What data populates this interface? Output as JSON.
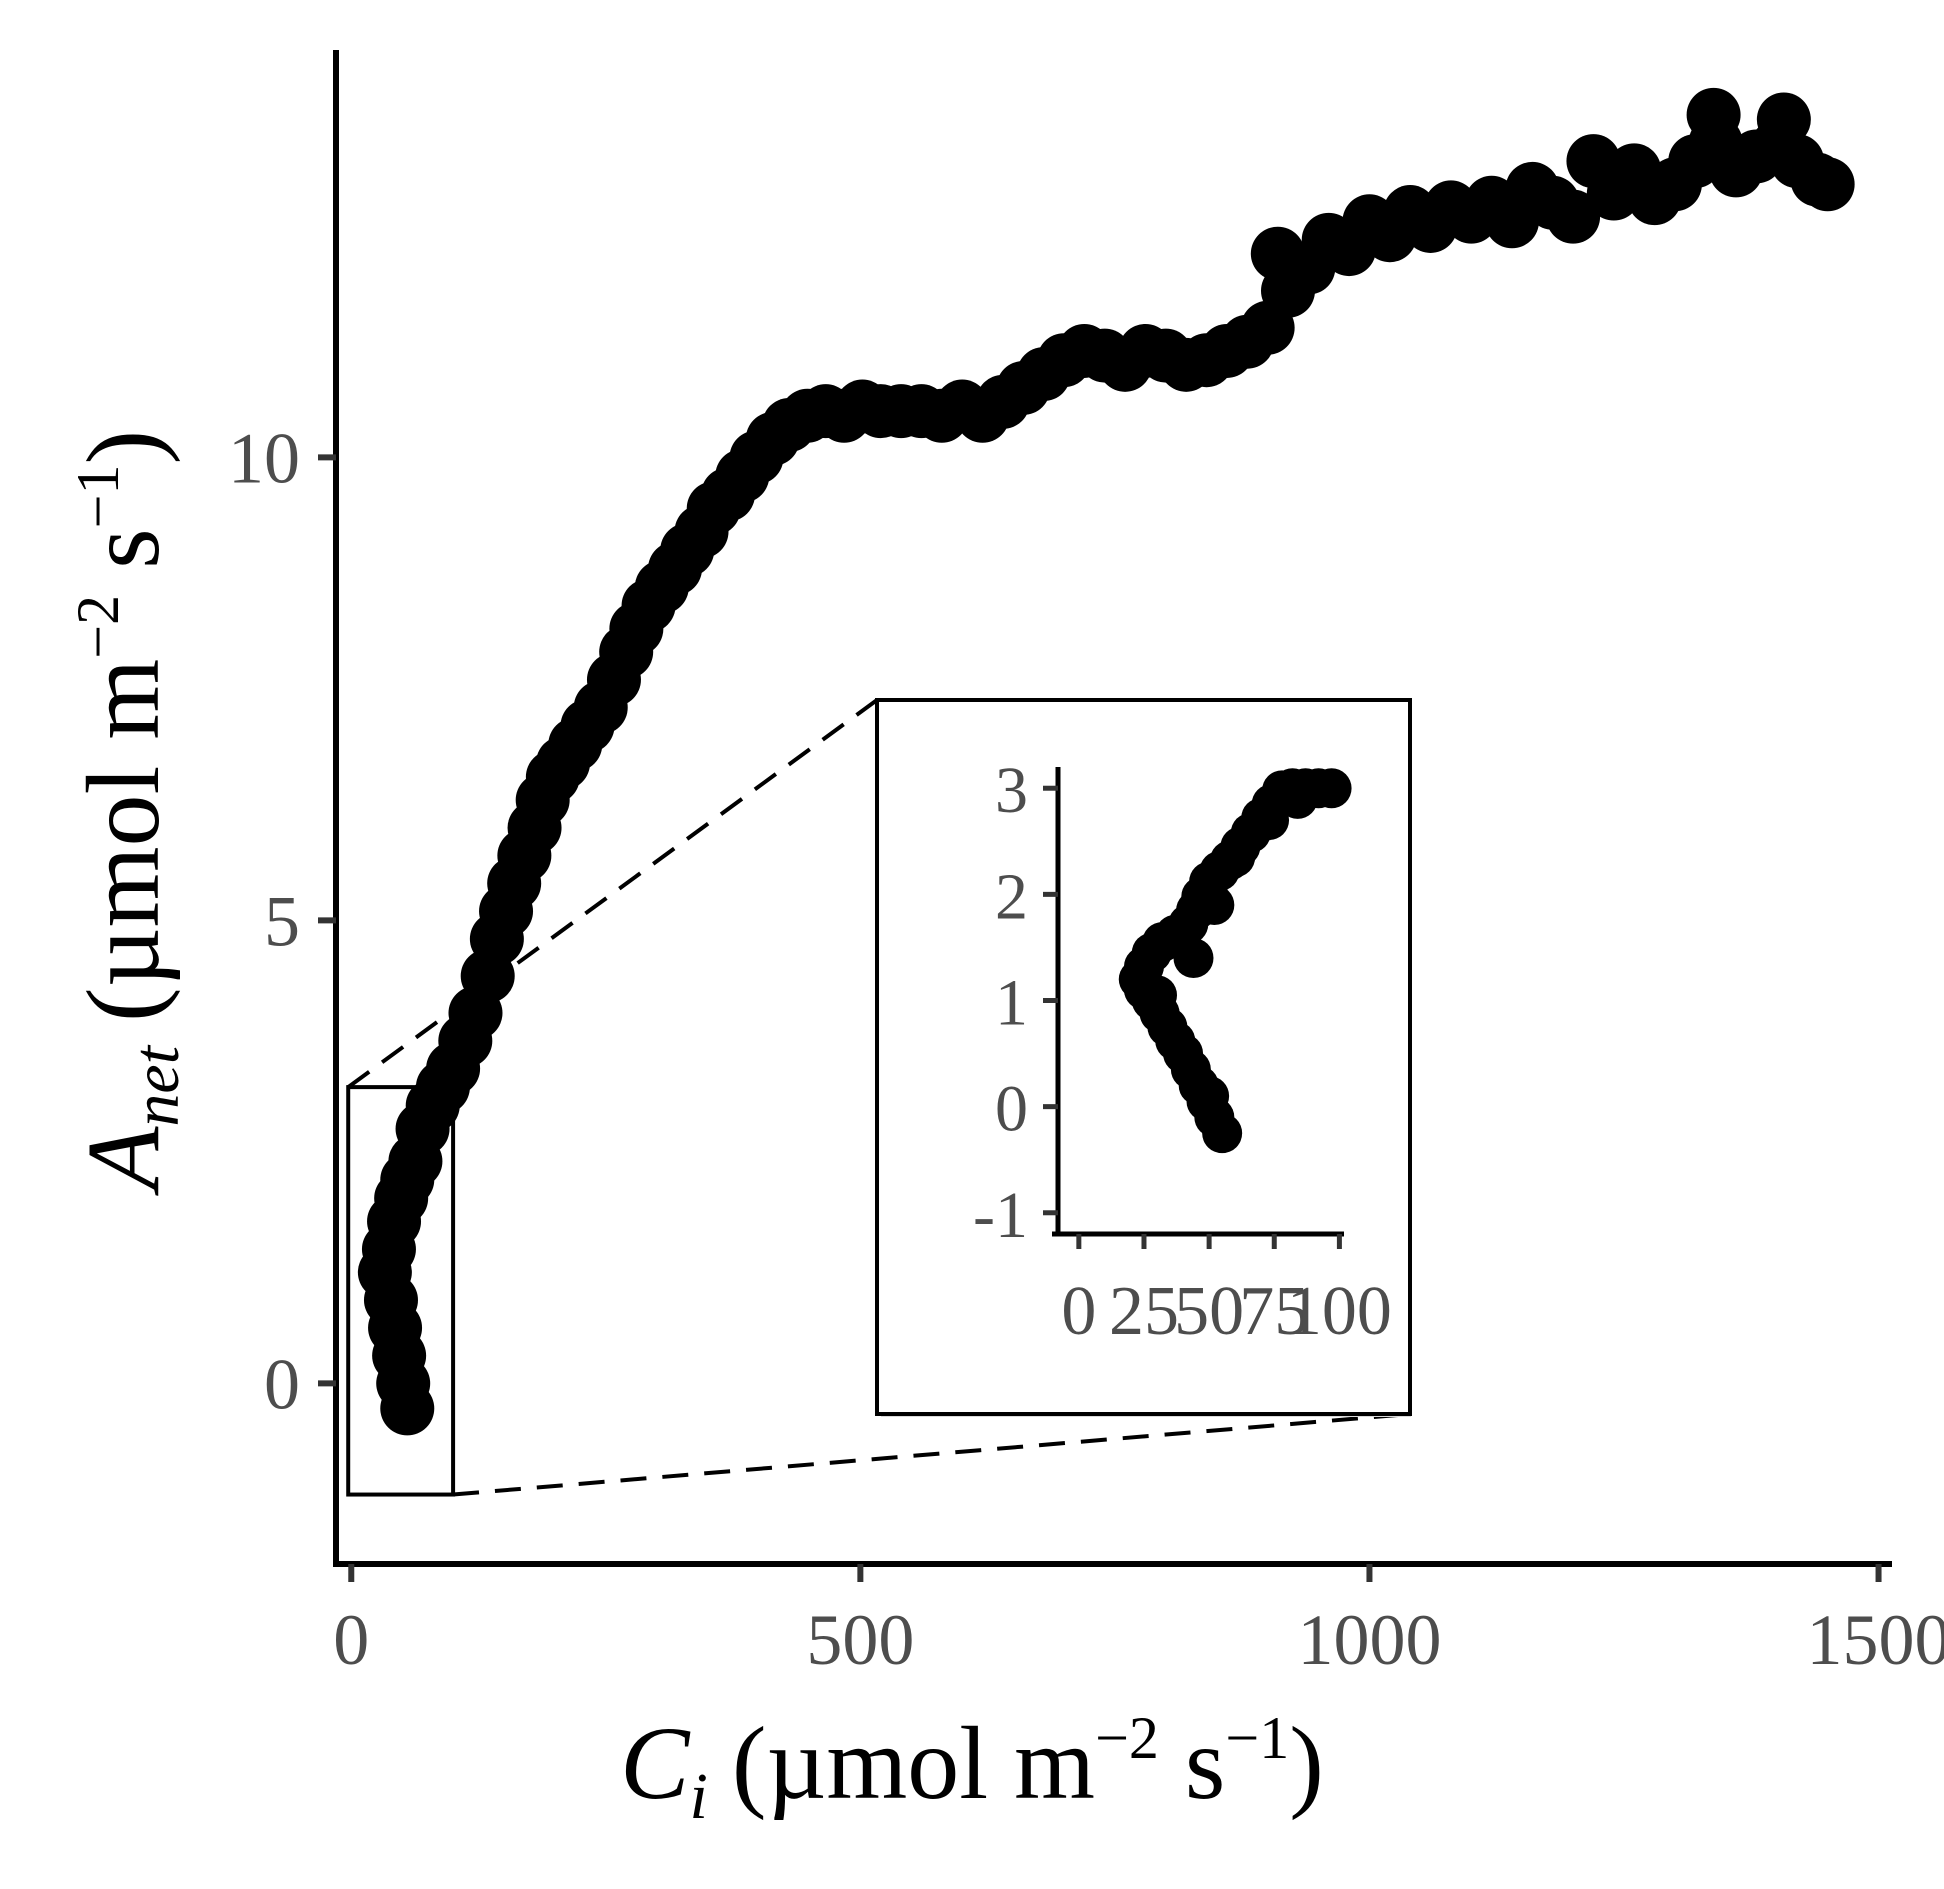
{
  "chart_data": [
    {
      "type": "scatter",
      "xlabel": {
        "symbol": "C",
        "subscript": "i",
        "units_prefix": "(µmol m",
        "exp1": "−2",
        "units_mid": " s",
        "exp2": "−1",
        "units_suffix": ")"
      },
      "ylabel": {
        "symbol": "A",
        "subscript": "net",
        "units_prefix": "(µmol m",
        "exp1": "−2",
        "units_mid": " s",
        "exp2": "−1",
        "units_suffix": ")"
      },
      "xlim": [
        -15,
        1470
      ],
      "ylim": [
        -1.95,
        14.4
      ],
      "xticks": [
        0,
        500,
        1000,
        1500
      ],
      "xtick_labels": [
        "0",
        "500",
        "1000",
        "1500"
      ],
      "yticks": [
        0,
        5,
        10
      ],
      "ytick_labels": [
        "0",
        "5",
        "10"
      ],
      "grid": false,
      "legend": "none",
      "marker_color": "#000000",
      "points": [
        [
          55,
          -0.27
        ],
        [
          51,
          0.0
        ],
        [
          47,
          0.3
        ],
        [
          43,
          0.6
        ],
        [
          39,
          0.9
        ],
        [
          33,
          1.2
        ],
        [
          37,
          1.45
        ],
        [
          42,
          1.75
        ],
        [
          49,
          2.0
        ],
        [
          55,
          2.2
        ],
        [
          63,
          2.4
        ],
        [
          70,
          2.75
        ],
        [
          80,
          3.0
        ],
        [
          90,
          3.2
        ],
        [
          100,
          3.4
        ],
        [
          112,
          3.7
        ],
        [
          122,
          4.0
        ],
        [
          134,
          4.4
        ],
        [
          143,
          4.8
        ],
        [
          152,
          5.1
        ],
        [
          160,
          5.4
        ],
        [
          170,
          5.7
        ],
        [
          180,
          6.0
        ],
        [
          188,
          6.3
        ],
        [
          198,
          6.55
        ],
        [
          208,
          6.7
        ],
        [
          220,
          6.9
        ],
        [
          232,
          7.1
        ],
        [
          245,
          7.3
        ],
        [
          258,
          7.6
        ],
        [
          270,
          7.9
        ],
        [
          280,
          8.15
        ],
        [
          292,
          8.4
        ],
        [
          305,
          8.6
        ],
        [
          318,
          8.8
        ],
        [
          330,
          9.0
        ],
        [
          344,
          9.2
        ],
        [
          356,
          9.45
        ],
        [
          370,
          9.6
        ],
        [
          384,
          9.8
        ],
        [
          398,
          10.0
        ],
        [
          414,
          10.2
        ],
        [
          430,
          10.35
        ],
        [
          448,
          10.45
        ],
        [
          466,
          10.5
        ],
        [
          484,
          10.45
        ],
        [
          502,
          10.55
        ],
        [
          520,
          10.5
        ],
        [
          540,
          10.5
        ],
        [
          560,
          10.5
        ],
        [
          580,
          10.45
        ],
        [
          600,
          10.55
        ],
        [
          620,
          10.45
        ],
        [
          640,
          10.6
        ],
        [
          660,
          10.75
        ],
        [
          680,
          10.9
        ],
        [
          700,
          11.05
        ],
        [
          720,
          11.15
        ],
        [
          740,
          11.1
        ],
        [
          760,
          11.0
        ],
        [
          780,
          11.15
        ],
        [
          800,
          11.1
        ],
        [
          820,
          11.0
        ],
        [
          840,
          11.05
        ],
        [
          860,
          11.15
        ],
        [
          880,
          11.25
        ],
        [
          900,
          11.4
        ],
        [
          910,
          12.2
        ],
        [
          920,
          11.8
        ],
        [
          940,
          12.05
        ],
        [
          960,
          12.35
        ],
        [
          980,
          12.25
        ],
        [
          1000,
          12.55
        ],
        [
          1020,
          12.4
        ],
        [
          1040,
          12.65
        ],
        [
          1060,
          12.5
        ],
        [
          1080,
          12.7
        ],
        [
          1100,
          12.6
        ],
        [
          1120,
          12.75
        ],
        [
          1140,
          12.55
        ],
        [
          1160,
          12.9
        ],
        [
          1180,
          12.75
        ],
        [
          1200,
          12.6
        ],
        [
          1220,
          13.2
        ],
        [
          1240,
          12.85
        ],
        [
          1260,
          13.1
        ],
        [
          1280,
          12.8
        ],
        [
          1300,
          12.95
        ],
        [
          1320,
          13.2
        ],
        [
          1340,
          13.4
        ],
        [
          1360,
          13.1
        ],
        [
          1380,
          13.25
        ],
        [
          1400,
          13.35
        ],
        [
          1420,
          13.2
        ],
        [
          1440,
          13.0
        ],
        [
          1450,
          12.95
        ],
        [
          1338,
          13.7
        ],
        [
          1407,
          13.65
        ]
      ]
    },
    {
      "type": "scatter",
      "role": "inset",
      "xlim": [
        -8,
        101
      ],
      "ylim": [
        -1.2,
        3.2
      ],
      "xticks": [
        0,
        25,
        50,
        75,
        100
      ],
      "xtick_labels": [
        "0",
        "25",
        "50",
        "75",
        "100"
      ],
      "yticks": [
        -1,
        0,
        1,
        2,
        3
      ],
      "ytick_labels": [
        "-1",
        "0",
        "1",
        "2",
        "3"
      ],
      "grid": false,
      "legend": "none",
      "marker_color": "#000000",
      "zoom_region": {
        "x": [
          -3,
          100
        ],
        "y": [
          -1.2,
          3.2
        ]
      },
      "points": [
        [
          55,
          -0.25
        ],
        [
          52,
          -0.1
        ],
        [
          49,
          0.05
        ],
        [
          46,
          0.2
        ],
        [
          43,
          0.35
        ],
        [
          40,
          0.5
        ],
        [
          37,
          0.62
        ],
        [
          34,
          0.75
        ],
        [
          31,
          0.88
        ],
        [
          28,
          1.0
        ],
        [
          25,
          1.1
        ],
        [
          23,
          1.2
        ],
        [
          25,
          1.32
        ],
        [
          28,
          1.45
        ],
        [
          32,
          1.55
        ],
        [
          37,
          1.62
        ],
        [
          42,
          1.72
        ],
        [
          45,
          1.85
        ],
        [
          47,
          1.98
        ],
        [
          50,
          2.12
        ],
        [
          54,
          2.22
        ],
        [
          58,
          2.32
        ],
        [
          62,
          2.45
        ],
        [
          66,
          2.58
        ],
        [
          70,
          2.72
        ],
        [
          74,
          2.85
        ],
        [
          78,
          2.98
        ],
        [
          82,
          3.0
        ],
        [
          87,
          3.0
        ],
        [
          92,
          3.0
        ],
        [
          97,
          3.0
        ],
        [
          84,
          2.9
        ],
        [
          73,
          2.7
        ],
        [
          60,
          2.35
        ],
        [
          52,
          1.9
        ],
        [
          44,
          1.4
        ],
        [
          30,
          1.05
        ],
        [
          50,
          0.1
        ]
      ]
    }
  ]
}
